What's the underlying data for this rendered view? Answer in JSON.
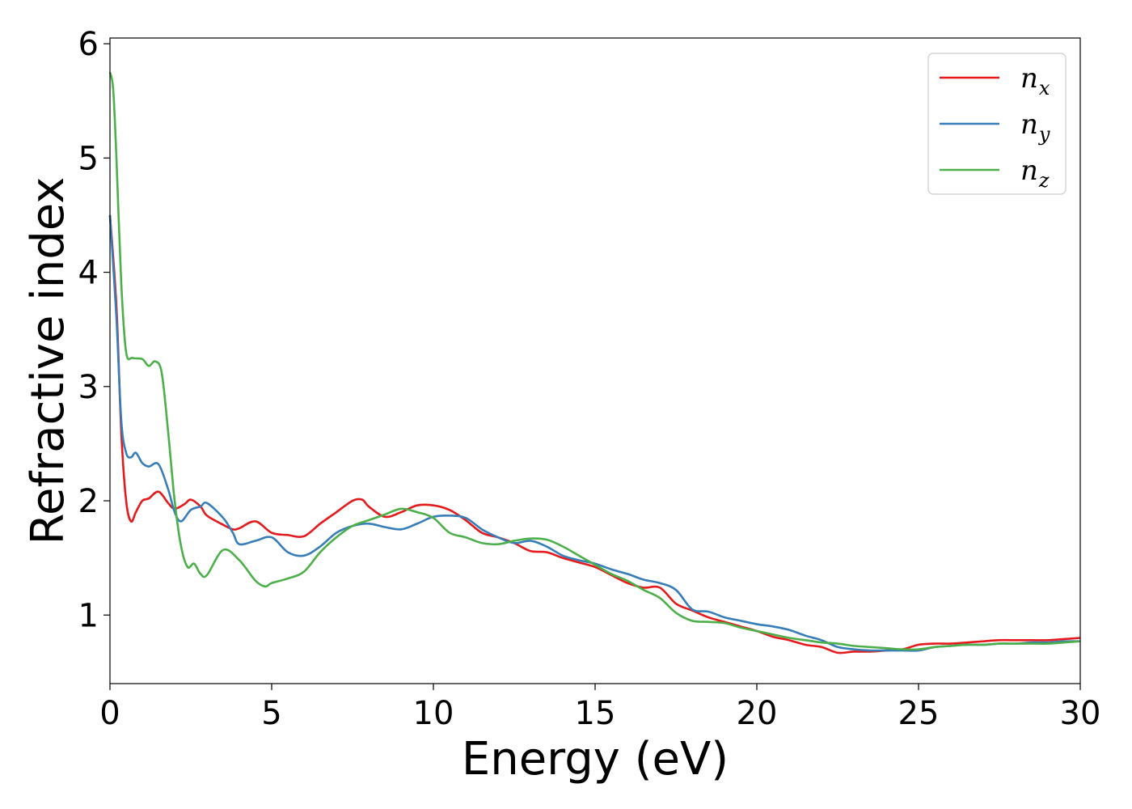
{
  "chart_data": {
    "type": "line",
    "title": "",
    "xlabel": "Energy (eV)",
    "ylabel": "Refractive index",
    "xlim": [
      0,
      30
    ],
    "ylim": [
      0.4,
      6.05
    ],
    "xticks": [
      0,
      5,
      10,
      15,
      20,
      25,
      30
    ],
    "yticks": [
      1,
      2,
      3,
      4,
      5,
      6
    ],
    "grid": false,
    "legend_position": "top-right",
    "series": [
      {
        "name": "n",
        "subscript": "x",
        "color": "#e41a1c",
        "x": [
          0,
          0.2,
          0.35,
          0.5,
          0.65,
          0.8,
          1.0,
          1.2,
          1.5,
          1.8,
          2.0,
          2.3,
          2.5,
          2.8,
          3.0,
          3.5,
          3.8,
          4.0,
          4.5,
          5.0,
          5.5,
          6.0,
          6.5,
          7.0,
          7.5,
          7.8,
          8.0,
          8.5,
          9.0,
          9.5,
          10.0,
          10.5,
          11.0,
          11.5,
          12.0,
          12.5,
          13.0,
          13.5,
          14.0,
          14.5,
          15.0,
          15.5,
          16.0,
          16.5,
          17.0,
          17.5,
          18.0,
          18.5,
          19.0,
          19.5,
          20.0,
          20.5,
          21.0,
          21.5,
          22.0,
          22.5,
          23.0,
          23.5,
          24.0,
          24.5,
          25.0,
          25.5,
          26.0,
          26.5,
          27.0,
          27.5,
          28.0,
          28.5,
          29.0,
          29.5,
          30.0
        ],
        "y": [
          4.5,
          3.7,
          2.6,
          2.0,
          1.82,
          1.9,
          2.0,
          2.02,
          2.08,
          1.98,
          1.93,
          1.97,
          2.01,
          1.95,
          1.87,
          1.79,
          1.75,
          1.76,
          1.82,
          1.72,
          1.7,
          1.69,
          1.8,
          1.9,
          2.0,
          2.01,
          1.95,
          1.86,
          1.9,
          1.96,
          1.96,
          1.92,
          1.83,
          1.72,
          1.68,
          1.63,
          1.56,
          1.55,
          1.5,
          1.46,
          1.42,
          1.35,
          1.28,
          1.24,
          1.24,
          1.1,
          1.04,
          0.98,
          0.94,
          0.9,
          0.86,
          0.81,
          0.78,
          0.74,
          0.72,
          0.67,
          0.68,
          0.68,
          0.69,
          0.7,
          0.74,
          0.75,
          0.75,
          0.76,
          0.77,
          0.78,
          0.78,
          0.78,
          0.78,
          0.79,
          0.8
        ]
      },
      {
        "name": "n",
        "subscript": "y",
        "color": "#377eb8",
        "x": [
          0,
          0.2,
          0.35,
          0.5,
          0.65,
          0.8,
          1.0,
          1.2,
          1.5,
          1.8,
          2.0,
          2.2,
          2.5,
          2.8,
          3.0,
          3.5,
          3.8,
          4.0,
          4.5,
          5.0,
          5.5,
          6.0,
          6.5,
          7.0,
          7.5,
          8.0,
          8.5,
          9.0,
          9.5,
          10.0,
          10.5,
          11.0,
          11.5,
          12.0,
          12.5,
          13.0,
          13.5,
          14.0,
          14.5,
          15.0,
          15.5,
          16.0,
          16.5,
          17.0,
          17.5,
          18.0,
          18.5,
          19.0,
          19.5,
          20.0,
          20.5,
          21.0,
          21.5,
          22.0,
          22.5,
          23.0,
          23.5,
          24.0,
          24.5,
          25.0,
          25.5,
          26.0,
          26.5,
          27.0,
          27.5,
          28.0,
          28.5,
          29.0,
          29.5,
          30.0
        ],
        "y": [
          4.5,
          3.6,
          2.7,
          2.42,
          2.38,
          2.42,
          2.33,
          2.3,
          2.32,
          2.1,
          1.9,
          1.82,
          1.92,
          1.95,
          1.98,
          1.85,
          1.72,
          1.62,
          1.65,
          1.68,
          1.55,
          1.52,
          1.6,
          1.72,
          1.78,
          1.8,
          1.77,
          1.75,
          1.8,
          1.86,
          1.87,
          1.85,
          1.75,
          1.68,
          1.63,
          1.65,
          1.6,
          1.52,
          1.48,
          1.45,
          1.4,
          1.36,
          1.31,
          1.28,
          1.22,
          1.05,
          1.03,
          0.98,
          0.95,
          0.92,
          0.9,
          0.87,
          0.82,
          0.78,
          0.72,
          0.7,
          0.69,
          0.69,
          0.69,
          0.69,
          0.72,
          0.73,
          0.74,
          0.74,
          0.75,
          0.75,
          0.76,
          0.76,
          0.77,
          0.77
        ]
      },
      {
        "name": "n",
        "subscript": "z",
        "color": "#4daf4a",
        "x": [
          0,
          0.1,
          0.2,
          0.35,
          0.5,
          0.7,
          1.0,
          1.2,
          1.4,
          1.6,
          1.8,
          2.0,
          2.2,
          2.4,
          2.6,
          2.8,
          3.0,
          3.5,
          4.0,
          4.5,
          4.8,
          5.0,
          5.5,
          6.0,
          6.5,
          7.0,
          7.5,
          8.0,
          8.5,
          9.0,
          9.5,
          10.0,
          10.5,
          11.0,
          11.5,
          12.0,
          12.5,
          13.0,
          13.5,
          14.0,
          14.5,
          15.0,
          15.5,
          16.0,
          16.5,
          17.0,
          17.5,
          18.0,
          18.5,
          19.0,
          19.5,
          20.0,
          20.5,
          21.0,
          21.5,
          22.0,
          22.5,
          23.0,
          23.5,
          24.0,
          24.5,
          25.0,
          25.5,
          26.0,
          26.5,
          27.0,
          27.5,
          28.0,
          28.5,
          29.0,
          29.5,
          30.0
        ],
        "y": [
          5.75,
          5.6,
          5.0,
          3.9,
          3.3,
          3.25,
          3.24,
          3.18,
          3.22,
          3.12,
          2.6,
          2.0,
          1.6,
          1.42,
          1.45,
          1.36,
          1.35,
          1.57,
          1.48,
          1.3,
          1.25,
          1.28,
          1.32,
          1.38,
          1.55,
          1.68,
          1.78,
          1.83,
          1.88,
          1.93,
          1.9,
          1.85,
          1.72,
          1.68,
          1.63,
          1.62,
          1.65,
          1.67,
          1.66,
          1.6,
          1.52,
          1.44,
          1.36,
          1.3,
          1.22,
          1.15,
          1.02,
          0.95,
          0.94,
          0.93,
          0.89,
          0.86,
          0.83,
          0.8,
          0.78,
          0.76,
          0.75,
          0.73,
          0.72,
          0.71,
          0.7,
          0.7,
          0.72,
          0.73,
          0.74,
          0.74,
          0.75,
          0.75,
          0.75,
          0.75,
          0.76,
          0.77
        ]
      }
    ]
  }
}
